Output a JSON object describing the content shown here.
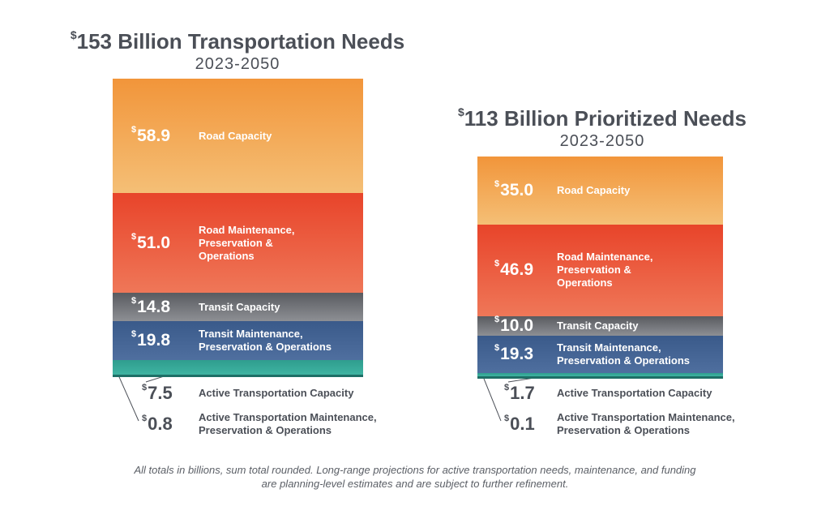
{
  "chart_data": [
    {
      "type": "bar",
      "stacked": true,
      "title_prefix": "$",
      "title": "153 Billion Transportation Needs",
      "subtitle": "2023-2050",
      "currency_symbol": "$",
      "segments": [
        {
          "name": "Road Capacity",
          "value": 58.9,
          "display": "58.9",
          "color_top": "#f2953a",
          "color_bottom": "#f4bf76"
        },
        {
          "name": "Road Maintenance,\nPreservation &\nOperations",
          "value": 51.0,
          "display": "51.0",
          "color_top": "#e8442a",
          "color_bottom": "#ef7758"
        },
        {
          "name": "Transit Capacity",
          "value": 14.8,
          "display": "14.8",
          "color_top": "#595b60",
          "color_bottom": "#8d8f94"
        },
        {
          "name": "Transit Maintenance,\nPreservation & Operations",
          "value": 19.8,
          "display": "19.8",
          "color_top": "#3a5a8a",
          "color_bottom": "#4f6f9f"
        },
        {
          "name": "Active Transportation Capacity",
          "value": 7.5,
          "display": "7.5",
          "color_top": "#2f9d8e",
          "color_bottom": "#3fb4a2",
          "outside": true
        },
        {
          "name": "Active Transportation Maintenance,\nPreservation & Operations",
          "value": 0.8,
          "display": "0.8",
          "color_top": "#1e6f66",
          "color_bottom": "#1e6f66",
          "outside": true
        }
      ]
    },
    {
      "type": "bar",
      "stacked": true,
      "title_prefix": "$",
      "title": "113 Billion Prioritized Needs",
      "subtitle": "2023-2050",
      "currency_symbol": "$",
      "segments": [
        {
          "name": "Road Capacity",
          "value": 35.0,
          "display": "35.0",
          "color_top": "#f2953a",
          "color_bottom": "#f4bf76"
        },
        {
          "name": "Road Maintenance,\nPreservation &\nOperations",
          "value": 46.9,
          "display": "46.9",
          "color_top": "#e8442a",
          "color_bottom": "#ef7758"
        },
        {
          "name": "Transit Capacity",
          "value": 10.0,
          "display": "10.0",
          "color_top": "#595b60",
          "color_bottom": "#8d8f94"
        },
        {
          "name": "Transit Maintenance,\nPreservation & Operations",
          "value": 19.3,
          "display": "19.3",
          "color_top": "#3a5a8a",
          "color_bottom": "#4f6f9f"
        },
        {
          "name": "Active Transportation Capacity",
          "value": 1.7,
          "display": "1.7",
          "color_top": "#2f9d8e",
          "color_bottom": "#3fb4a2",
          "outside": true
        },
        {
          "name": "Active Transportation Maintenance,\nPreservation & Operations",
          "value": 0.1,
          "display": "0.1",
          "color_top": "#1e6f66",
          "color_bottom": "#1e6f66",
          "outside": true
        }
      ]
    }
  ],
  "footnote": {
    "line1": "All totals in billions, sum total rounded. Long-range projections for active transportation needs, maintenance, and funding",
    "line2": "are planning-level estimates and are subject to further refinement."
  },
  "colors": {
    "text_dark": "#4b4f57",
    "leader_line": "#4b4f57"
  }
}
